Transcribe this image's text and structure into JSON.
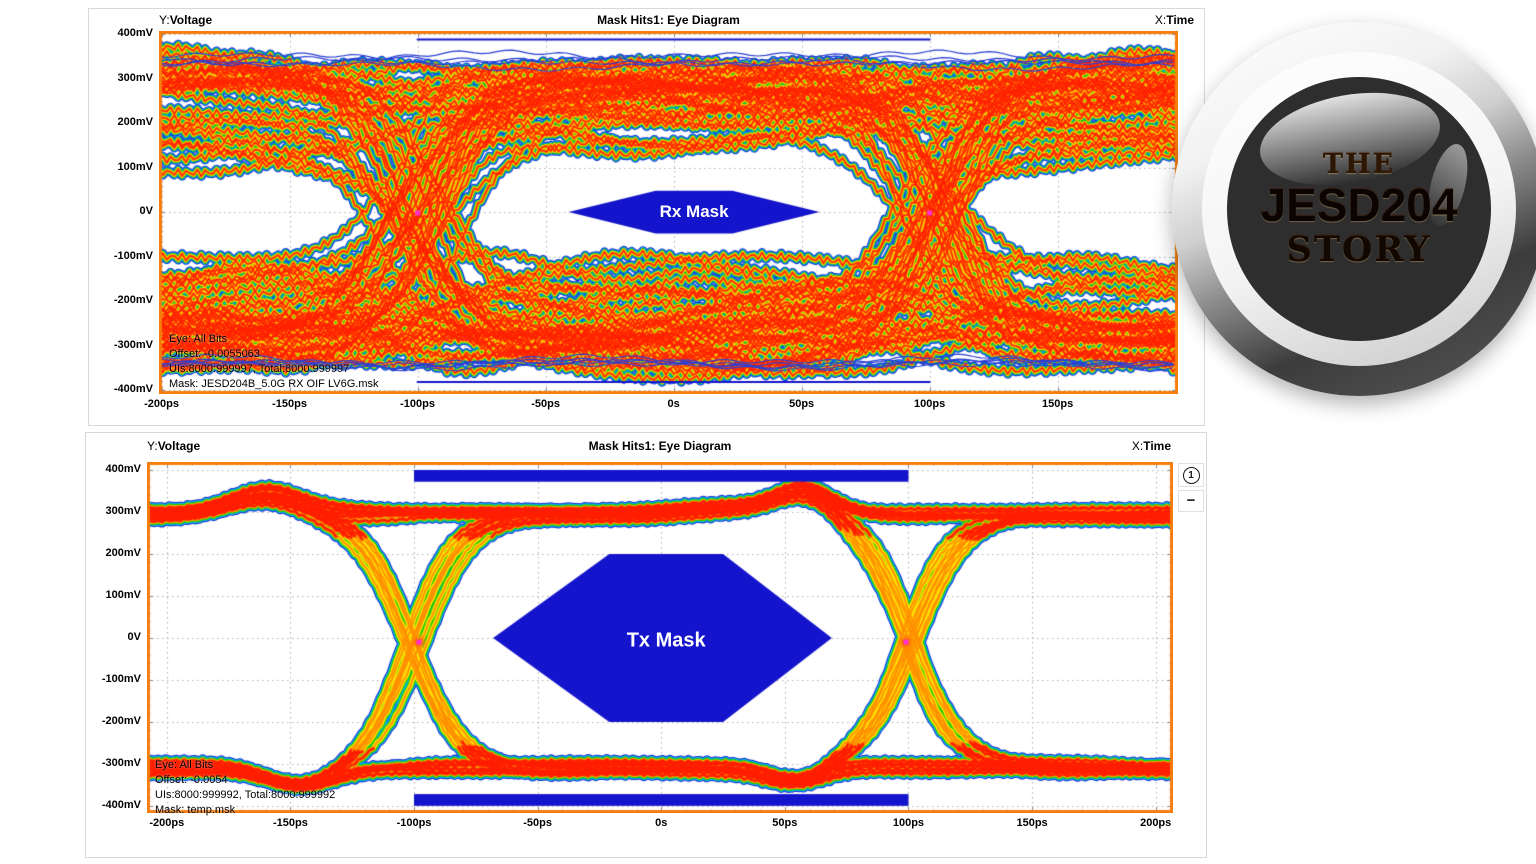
{
  "colors": {
    "plot_border": "#f57d0d",
    "mask_blue": "#1414cc",
    "marker_magenta": "#ff2fd0",
    "grid_gray": "#b0b0b0"
  },
  "badge": {
    "line1": "THE",
    "line2": "JESD204",
    "line3": "STORY"
  },
  "controls": {
    "annotation_button_label": "1",
    "collapse_button_label": "−"
  },
  "chart_data": [
    {
      "type": "heatmap",
      "subtype": "eye-diagram",
      "title": "Mask Hits1: Eye Diagram",
      "y_prefix": "Y:",
      "y_axis": "Voltage",
      "x_prefix": "X:",
      "x_axis": "Time",
      "xlim": [
        -201,
        197
      ],
      "ylim": [
        -409,
        407
      ],
      "grid": true,
      "x_ticks": [
        {
          "v": -200,
          "label": "-200ps"
        },
        {
          "v": -150,
          "label": "-150ps"
        },
        {
          "v": -100,
          "label": "-100ps"
        },
        {
          "v": -50,
          "label": "-50ps"
        },
        {
          "v": 0,
          "label": "0s"
        },
        {
          "v": 50,
          "label": "50ps"
        },
        {
          "v": 100,
          "label": "100ps"
        },
        {
          "v": 150,
          "label": "150ps"
        }
      ],
      "y_ticks": [
        {
          "v": 400,
          "label": "400mV"
        },
        {
          "v": 300,
          "label": "300mV"
        },
        {
          "v": 200,
          "label": "200mV"
        },
        {
          "v": 100,
          "label": "100mV"
        },
        {
          "v": 0,
          "label": "0V"
        },
        {
          "v": -100,
          "label": "-100mV"
        },
        {
          "v": -200,
          "label": "-200mV"
        },
        {
          "v": -300,
          "label": "-300mV"
        },
        {
          "v": -400,
          "label": "-400mV"
        }
      ],
      "annotations": [
        "Eye: All Bits",
        "Offset: -0.0055063",
        "UIs:8000:999997, Total:8000:999997",
        "Mask: JESD204B_5.0G RX OIF LV6G.msk"
      ],
      "mask": {
        "label": "Rx Mask",
        "fill": "#1414cc",
        "label_pos": [
          8,
          0
        ],
        "polygon": [
          [
            -41,
            0
          ],
          [
            -7,
            48
          ],
          [
            23,
            48
          ],
          [
            57,
            0
          ],
          [
            23,
            -48
          ],
          [
            -7,
            -48
          ]
        ],
        "bars": [],
        "lines": [
          {
            "y": 389,
            "x1": -100,
            "x2": 100
          },
          {
            "y": -381,
            "x1": -100,
            "x2": 100
          }
        ]
      },
      "markers": [
        [
          -100,
          -2
        ],
        [
          100,
          -2
        ]
      ],
      "signal": {
        "high_mv": 300,
        "low_mv": -300,
        "ui_ps": 200,
        "crossings_ps": [
          -100,
          100
        ],
        "n_traces": 78,
        "amp_min": 120,
        "amp_max": 335,
        "amp_mix": {
          "p_rail": 0.55,
          "rail_min": 250,
          "isi_max": 280
        },
        "noise_mv": 42,
        "hf_mv": 8,
        "time_jitter_ps": 14,
        "transition_ps": 72,
        "offset_mv": -3,
        "seed": 7,
        "halo": {
          "n": 9,
          "amp": 343,
          "spread": 10,
          "noise": 16,
          "color": "#2a3fd4"
        },
        "layers": [
          [
            "#1b2ecc",
            9
          ],
          [
            "#00aaff",
            7
          ],
          [
            "#16c400",
            5.5
          ],
          [
            "#ffe000",
            4
          ],
          [
            "#ff8800",
            2.6
          ],
          [
            "#ff2200",
            1.3
          ]
        ],
        "rail_layers": [],
        "rail_thresh": 0,
        "hotspots": [],
        "bumps": null
      }
    },
    {
      "type": "heatmap",
      "subtype": "eye-diagram",
      "title": "Mask Hits1: Eye Diagram",
      "y_prefix": "Y:",
      "y_axis": "Voltage",
      "x_prefix": "X:",
      "x_axis": "Time",
      "xlim": [
        -208,
        207
      ],
      "ylim": [
        -417,
        419
      ],
      "grid": true,
      "x_ticks": [
        {
          "v": -200,
          "label": "-200ps"
        },
        {
          "v": -150,
          "label": "-150ps"
        },
        {
          "v": -100,
          "label": "-100ps"
        },
        {
          "v": -50,
          "label": "-50ps"
        },
        {
          "v": 0,
          "label": "0s"
        },
        {
          "v": 50,
          "label": "50ps"
        },
        {
          "v": 100,
          "label": "100ps"
        },
        {
          "v": 150,
          "label": "150ps"
        },
        {
          "v": 200,
          "label": "200ps"
        }
      ],
      "y_ticks": [
        {
          "v": 400,
          "label": "400mV"
        },
        {
          "v": 300,
          "label": "300mV"
        },
        {
          "v": 200,
          "label": "200mV"
        },
        {
          "v": 100,
          "label": "100mV"
        },
        {
          "v": 0,
          "label": "0V"
        },
        {
          "v": -100,
          "label": "-100mV"
        },
        {
          "v": -200,
          "label": "-200mV"
        },
        {
          "v": -300,
          "label": "-300mV"
        },
        {
          "v": -400,
          "label": "-400mV"
        }
      ],
      "annotations": [
        "Eye: All Bits",
        "Offset: -0.0054",
        "UIs:8000:999992, Total:8000:999992",
        "Mask: temp.msk"
      ],
      "mask": {
        "label": "Tx Mask",
        "fill": "#1414cc",
        "label_pos": [
          2,
          -8
        ],
        "polygon": [
          [
            -68,
            0
          ],
          [
            -21,
            200
          ],
          [
            25,
            200
          ],
          [
            69,
            0
          ],
          [
            25,
            -200
          ],
          [
            -21,
            -200
          ]
        ],
        "bars": [
          {
            "x1": -100,
            "x2": 100,
            "y1": 372,
            "y2": 400
          },
          {
            "x1": -100,
            "x2": 100,
            "y1": -400,
            "y2": -372
          }
        ],
        "lines": []
      },
      "markers": [
        [
          -98,
          -10
        ],
        [
          99,
          -10
        ]
      ],
      "signal": {
        "high_mv": 300,
        "low_mv": -300,
        "ui_ps": 200,
        "crossings_ps": [
          -100,
          100
        ],
        "n_traces": 42,
        "amp_min": 288,
        "amp_max": 318,
        "amp_mix": null,
        "noise_mv": 7,
        "hf_mv": 3,
        "time_jitter_ps": 5,
        "transition_ps": 58,
        "offset_mv": -8,
        "seed": 12,
        "halo": null,
        "layers": [
          [
            "#1b2ecc",
            11
          ],
          [
            "#00b4ff",
            9
          ],
          [
            "#22cc00",
            7
          ],
          [
            "#ffe000",
            4.6
          ],
          [
            "#ff9000",
            1.7
          ]
        ],
        "rail_layers": [
          [
            "#ff7000",
            4
          ],
          [
            "#ff1e00",
            2.2
          ]
        ],
        "rail_thresh": 245,
        "hotspots": [
          [
            -98,
            -10
          ],
          [
            99,
            -10
          ]
        ],
        "bumps": {
          "top": [
            [
              -160,
              46,
              20
            ],
            [
              58,
              52,
              16
            ],
            [
              30,
              16,
              30
            ]
          ],
          "bottom": [
            [
              -146,
              -44,
              20
            ],
            [
              54,
              -40,
              16
            ]
          ]
        }
      }
    }
  ]
}
